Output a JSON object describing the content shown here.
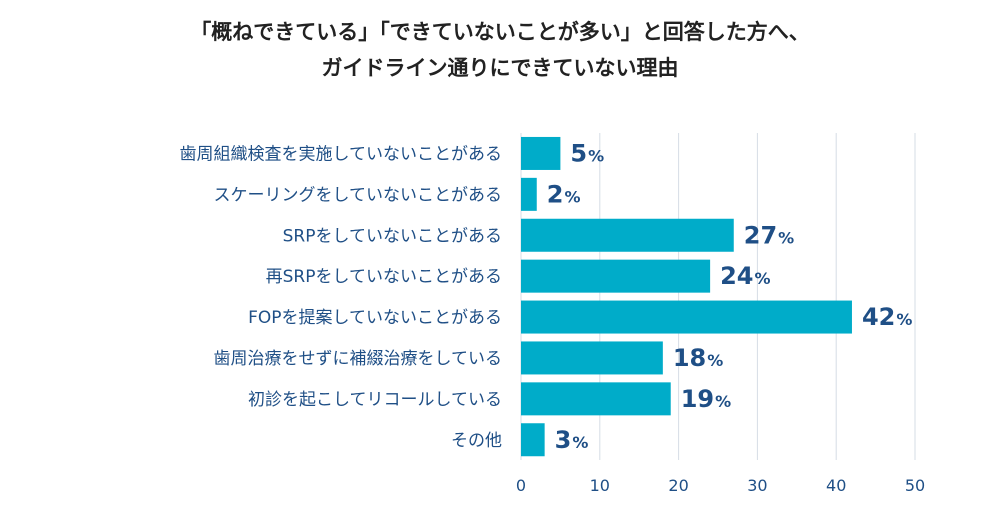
{
  "title_lines": [
    "「概ねできている」「できていないことが多い」と回答した方へ、",
    "ガイドライン通りにできていない理由"
  ],
  "chart_data": {
    "type": "bar",
    "orientation": "horizontal",
    "categories": [
      "歯周組織検査を実施していないことがある",
      "スケーリングをしていないことがある",
      "SRPをしていないことがある",
      "再SRPをしていないことがある",
      "FOPを提案していないことがある",
      "歯周治療をせずに補綴治療をしている",
      "初診を起こしてリコールしている",
      "その他"
    ],
    "values": [
      5,
      2,
      27,
      24,
      42,
      18,
      19,
      3
    ],
    "value_suffix": "%",
    "xlim": [
      0,
      50
    ],
    "xticks": [
      0,
      10,
      20,
      30,
      40,
      50
    ],
    "grid": true,
    "colors": {
      "bar": "#00acc9",
      "text": "#1f4f86",
      "grid": "#d6dde5"
    }
  }
}
